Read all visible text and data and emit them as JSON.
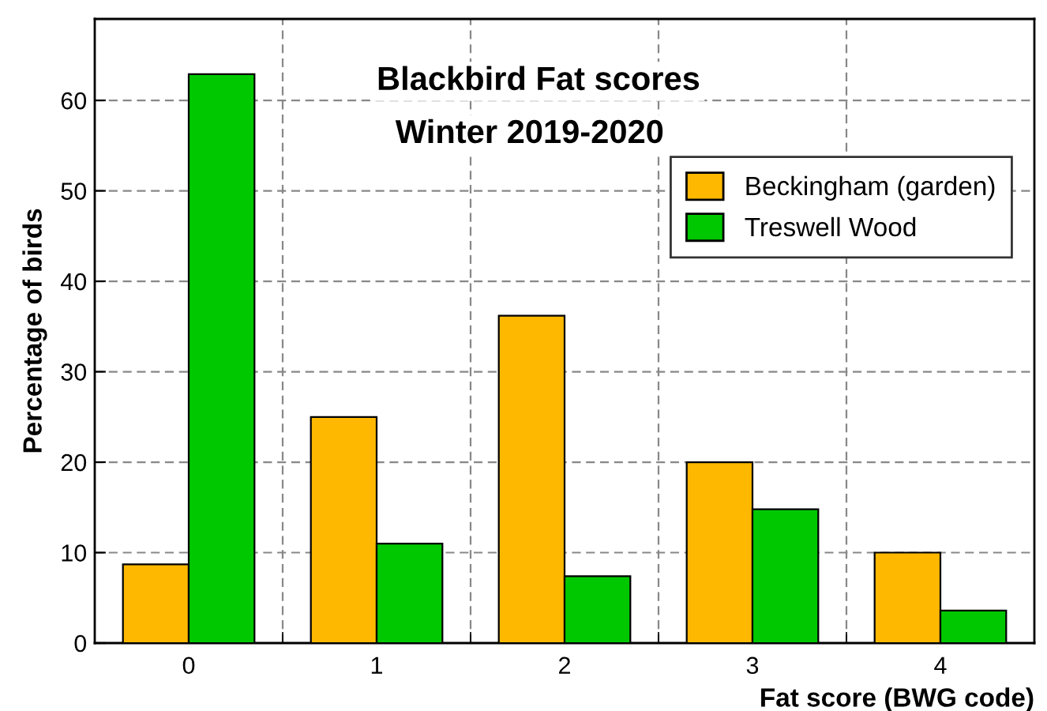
{
  "chart_data": {
    "type": "bar",
    "title": "Blackbird Fat scores",
    "subtitle": "Winter 2019-2020",
    "xlabel": "Fat score (BWG code)",
    "ylabel": "Percentage of birds",
    "categories": [
      "0",
      "1",
      "2",
      "3",
      "4"
    ],
    "series": [
      {
        "name": "Beckingham (garden)",
        "color": "#ffb800",
        "values": [
          8.7,
          25,
          36.2,
          20,
          10
        ]
      },
      {
        "name": "Treswell Wood",
        "color": "#00c800",
        "values": [
          62.9,
          11,
          7.4,
          14.8,
          3.6
        ]
      }
    ],
    "ylim": [
      0,
      69
    ],
    "yticks": [
      0,
      10,
      20,
      30,
      40,
      50,
      60
    ],
    "grid": true,
    "legend": "top right"
  }
}
